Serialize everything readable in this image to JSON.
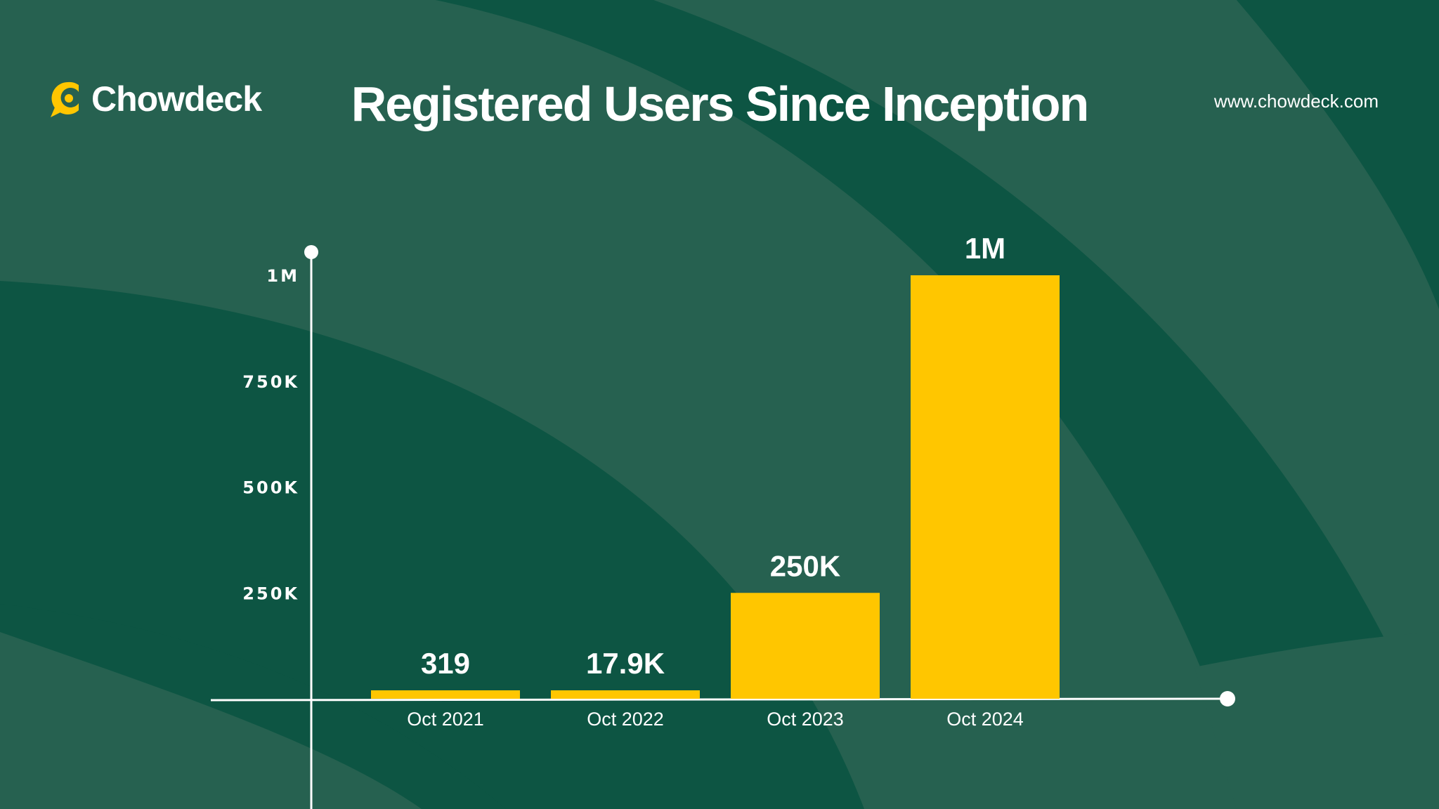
{
  "brand": {
    "name": "Chowdeck",
    "website": "www.chowdeck.com"
  },
  "colors": {
    "background": "#0d5543",
    "arc_light": "#266150",
    "bar": "#ffc600",
    "text": "#ffffff"
  },
  "chart_data": {
    "type": "bar",
    "title": "Registered Users Since Inception",
    "xlabel": "",
    "ylabel": "",
    "categories": [
      "Oct 2021",
      "Oct 2022",
      "Oct 2023",
      "Oct 2024"
    ],
    "values": [
      319,
      17900,
      250000,
      1000000
    ],
    "value_labels": [
      "319",
      "17.9K",
      "250K",
      "1M"
    ],
    "y_ticks": [
      {
        "value": 250000,
        "label": "250K"
      },
      {
        "value": 500000,
        "label": "500K"
      },
      {
        "value": 750000,
        "label": "750K"
      },
      {
        "value": 1000000,
        "label": "1M"
      }
    ],
    "grid": false,
    "legend": "none"
  }
}
